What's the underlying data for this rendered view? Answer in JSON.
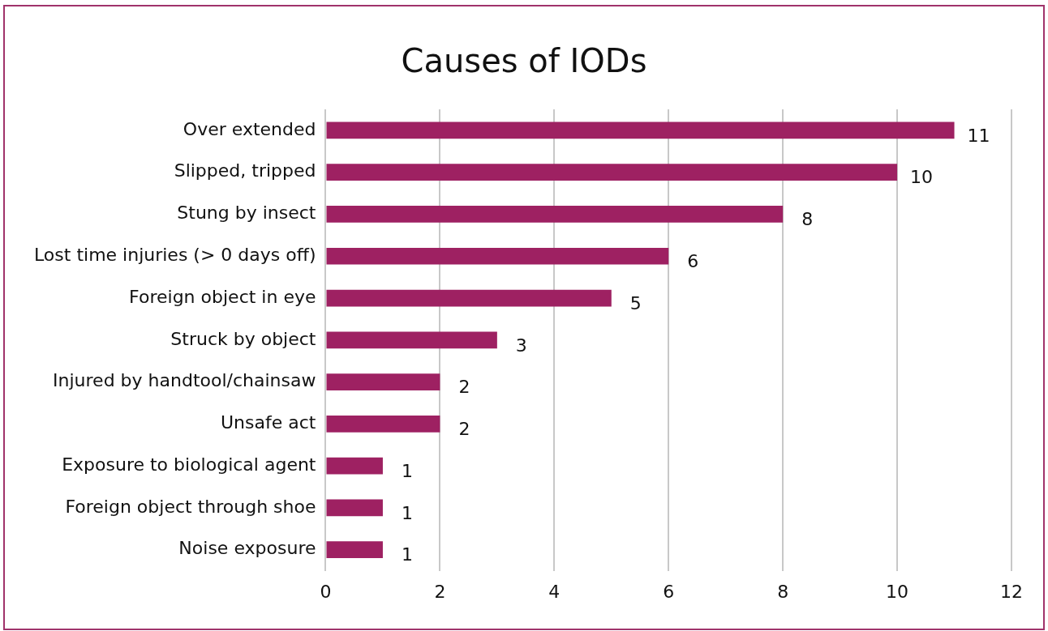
{
  "chart_data": {
    "type": "bar",
    "orientation": "horizontal",
    "title": "Causes of IODs",
    "categories": [
      "Over extended",
      "Slipped, tripped",
      "Stung by insect",
      "Lost time injuries (> 0 days off)",
      "Foreign object in eye",
      "Struck by object",
      "Injured by handtool/chainsaw",
      "Unsafe act",
      "Exposure to biological agent",
      "Foreign object through shoe",
      "Noise exposure"
    ],
    "values": [
      11,
      10,
      8,
      6,
      5,
      3,
      2,
      2,
      1,
      1,
      1
    ],
    "color": "#9e2162",
    "xlim": [
      0,
      12
    ],
    "xticks": [
      0,
      2,
      4,
      6,
      8,
      10,
      12
    ],
    "grid": "x",
    "data_labels": true
  }
}
